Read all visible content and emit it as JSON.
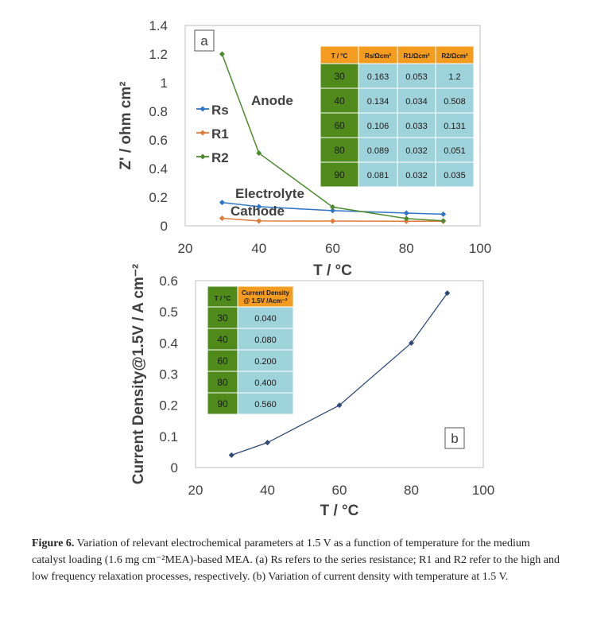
{
  "chart_data": [
    {
      "panel_label": "a",
      "type": "line",
      "xlabel": "T / °C",
      "ylabel": "Z' / ohm cm²",
      "xlim": [
        20,
        100
      ],
      "ylim": [
        0,
        1.4
      ],
      "xticks": [
        20,
        40,
        60,
        80,
        100
      ],
      "yticks": [
        0,
        0.2,
        0.4,
        0.6,
        0.8,
        1,
        1.2,
        1.4
      ],
      "x": [
        30,
        40,
        60,
        80,
        90
      ],
      "series": [
        {
          "name": "Rs",
          "values": [
            0.163,
            0.134,
            0.106,
            0.089,
            0.081
          ],
          "color": "#2e75c6",
          "annotation": "Electrolyte"
        },
        {
          "name": "R1",
          "values": [
            0.053,
            0.034,
            0.033,
            0.032,
            0.032
          ],
          "color": "#e07b39",
          "annotation": "Cathode"
        },
        {
          "name": "R2",
          "values": [
            1.2,
            0.508,
            0.131,
            0.051,
            0.035
          ],
          "color": "#4d8a2e",
          "annotation": "Anode"
        }
      ],
      "legend_placement": "left",
      "table": {
        "headers": [
          "T / °C",
          "Rs/Ωcm²",
          "R1/Ωcm²",
          "R2/Ωcm²"
        ],
        "rows": [
          [
            "30",
            "0.163",
            "0.053",
            "1.2"
          ],
          [
            "40",
            "0.134",
            "0.034",
            "0.508"
          ],
          [
            "60",
            "0.106",
            "0.033",
            "0.131"
          ],
          [
            "80",
            "0.089",
            "0.032",
            "0.051"
          ],
          [
            "90",
            "0.081",
            "0.032",
            "0.035"
          ]
        ]
      }
    },
    {
      "panel_label": "b",
      "type": "line",
      "xlabel": "T / °C",
      "ylabel": "Current Density@1.5V / A cm⁻²",
      "xlim": [
        20,
        100
      ],
      "ylim": [
        0,
        0.6
      ],
      "xticks": [
        20,
        40,
        60,
        80,
        100
      ],
      "yticks": [
        0,
        0.1,
        0.2,
        0.3,
        0.4,
        0.5,
        0.6
      ],
      "x": [
        30,
        40,
        60,
        80,
        90
      ],
      "series": [
        {
          "values": [
            0.04,
            0.08,
            0.2,
            0.4,
            0.56
          ],
          "color": "#2f4a7a"
        }
      ],
      "table": {
        "headers": [
          "T / °C",
          "Current Density @ 1.5V /Acm⁻²"
        ],
        "rows": [
          [
            "30",
            "0.040"
          ],
          [
            "40",
            "0.080"
          ],
          [
            "60",
            "0.200"
          ],
          [
            "80",
            "0.400"
          ],
          [
            "90",
            "0.560"
          ]
        ]
      }
    }
  ],
  "caption": {
    "label": "Figure 6.",
    "text": " Variation of relevant electrochemical parameters at 1.5 V as a function of temperature for the medium catalyst loading (1.6 mg cm⁻²MEA)-based MEA. (a) Rs refers to the series resistance; R1 and R2 refer to the high and low frequency relaxation processes, respectively. (b) Variation of current density with temperature at 1.5 V."
  },
  "colors": {
    "table_temp_bg": "#4f8a1b",
    "table_header_bg": "#f39c1f",
    "table_cell_bg": "#9fd3dc"
  }
}
